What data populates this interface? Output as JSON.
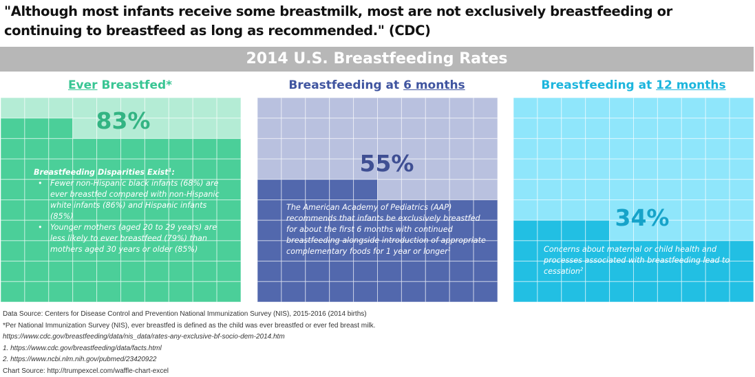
{
  "header": {
    "quote": "\"Although most infants receive some breastmilk, most are not exclusively breastfeeding or continuing to breastfeed as long as recommended.\" (CDC)",
    "banner": "2014 U.S. Breastfeeding Rates"
  },
  "colors": {
    "banner_bg": "#b7b7b7",
    "panel1_fill": "#4bcf99",
    "panel1_light": "#b4ecd5",
    "panel1_title": "#38c593",
    "panel1_pct": "#33b483",
    "panel2_fill": "#5268ad",
    "panel2_light": "#b9c1df",
    "panel2_title": "#4055a0",
    "panel2_pct": "#3f4f93",
    "panel3_fill": "#22bfe3",
    "panel3_light": "#8fe6fb",
    "panel3_title": "#1cb5dd",
    "panel3_pct": "#16a3c9"
  },
  "panels": [
    {
      "title_pre": "",
      "title_u": "Ever",
      "title_post": " Breastfed*",
      "percent_label": "83%",
      "note_title": "Breastfeeding Disparities Exist",
      "note_title_sup": "1",
      "note_title_end": ":",
      "bullets": [
        "Fewer non-Hispanic black infants (68%) are ever breastfed compared with non-Hispanic white infants (86%) and Hispanic infants (85%)",
        "Younger mothers (aged 20 to 29 years) are less likely to ever breastfeed (79%) than mothers aged 30 years or older (85%)"
      ]
    },
    {
      "title_pre": "Breastfeeding at ",
      "title_u": "6 months",
      "title_post": "",
      "percent_label": "55%",
      "note": "The American Academy of Pediatrics (AAP) recommends that infants be exclusively breastfed for about the first 6 months with continued breastfeeding alongside introduction of appropriate complementary foods for 1 year or longer",
      "note_sup": "1"
    },
    {
      "title_pre": "Breastfeeding at ",
      "title_u": "12 months",
      "title_post": "",
      "percent_label": "34%",
      "note": "Concerns about maternal or child health and processes associated with breastfeeding lead to cessation",
      "note_sup": "2"
    }
  ],
  "chart_data": [
    {
      "type": "waffle",
      "title": "Ever Breastfed*",
      "value": 83,
      "total": 100,
      "unit": "%"
    },
    {
      "type": "waffle",
      "title": "Breastfeeding at 6 months",
      "value": 55,
      "total": 100,
      "unit": "%"
    },
    {
      "type": "waffle",
      "title": "Breastfeeding at 12 months",
      "value": 34,
      "total": 100,
      "unit": "%"
    }
  ],
  "sources": {
    "data_source": "Data Source: Centers for Disease Control and Prevention National Immunization Survey (NIS), 2015-2016 (2014 births)",
    "definition": "*Per National Immunization Survey (NIS), ever breastfed is defined as the child was ever breastfed or ever fed breast milk.",
    "link_main": "https://www.cdc.gov/breastfeeding/data/nis_data/rates-any-exclusive-bf-socio-dem-2014.htm",
    "ref1": "1. https://www.cdc.gov/breastfeeding/data/facts.html",
    "ref2": "2. https://www.ncbi.nlm.nih.gov/pubmed/23420922",
    "chart_source": "Chart Source: http://trumpexcel.com/waffle-chart-excel"
  }
}
